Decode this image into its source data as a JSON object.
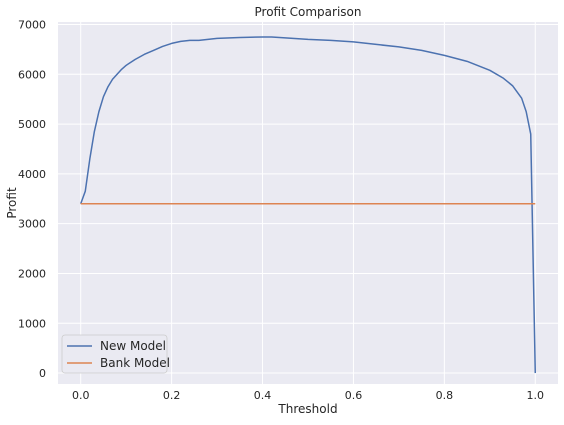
{
  "chart_data": {
    "type": "line",
    "title": "Profit Comparison",
    "xlabel": "Threshold",
    "ylabel": "Profit",
    "xlim": [
      -0.05,
      1.05
    ],
    "ylim": [
      -220,
      7050
    ],
    "xticks": [
      0.0,
      0.2,
      0.4,
      0.6,
      0.8,
      1.0
    ],
    "xtick_labels": [
      "0.0",
      "0.2",
      "0.4",
      "0.6",
      "0.8",
      "1.0"
    ],
    "yticks": [
      0,
      1000,
      2000,
      3000,
      4000,
      5000,
      6000,
      7000
    ],
    "ytick_labels": [
      "0",
      "1000",
      "2000",
      "3000",
      "4000",
      "5000",
      "6000",
      "7000"
    ],
    "grid": true,
    "legend_position": "lower-left",
    "series": [
      {
        "name": "New Model",
        "color": "#4c72b0",
        "x": [
          0.0,
          0.01,
          0.02,
          0.03,
          0.04,
          0.05,
          0.06,
          0.07,
          0.08,
          0.09,
          0.1,
          0.12,
          0.14,
          0.16,
          0.18,
          0.2,
          0.22,
          0.24,
          0.26,
          0.28,
          0.3,
          0.35,
          0.4,
          0.42,
          0.45,
          0.5,
          0.55,
          0.6,
          0.65,
          0.7,
          0.75,
          0.8,
          0.85,
          0.9,
          0.93,
          0.95,
          0.97,
          0.98,
          0.99,
          1.0
        ],
        "y": [
          3400,
          3650,
          4300,
          4850,
          5250,
          5550,
          5750,
          5900,
          6000,
          6100,
          6180,
          6300,
          6400,
          6480,
          6560,
          6620,
          6660,
          6680,
          6680,
          6700,
          6720,
          6740,
          6750,
          6750,
          6730,
          6700,
          6680,
          6650,
          6600,
          6550,
          6480,
          6380,
          6260,
          6080,
          5920,
          5770,
          5520,
          5250,
          4800,
          0
        ]
      },
      {
        "name": "Bank Model",
        "color": "#dd8452",
        "x": [
          0.0,
          1.0
        ],
        "y": [
          3400,
          3400
        ]
      }
    ]
  }
}
